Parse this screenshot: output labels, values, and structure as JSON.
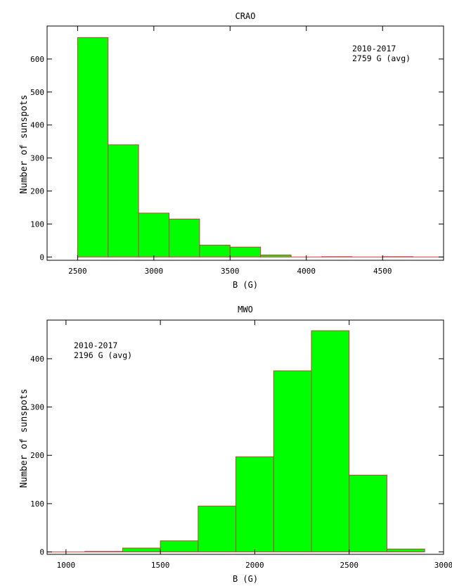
{
  "chart_data": [
    {
      "type": "bar",
      "title": "CRAO",
      "xlabel": "B (G)",
      "ylabel": "Number of sunspots",
      "annotation": [
        "2010-2017",
        "2759 G (avg)"
      ],
      "xlim": [
        2300,
        4900
      ],
      "ylim": [
        -10,
        700
      ],
      "xticks": [
        2500,
        3000,
        3500,
        4000,
        4500
      ],
      "yticks": [
        0,
        100,
        200,
        300,
        400,
        500,
        600
      ],
      "bin_width": 200,
      "bins": [
        {
          "start": 2500,
          "value": 665
        },
        {
          "start": 2700,
          "value": 340
        },
        {
          "start": 2900,
          "value": 133
        },
        {
          "start": 3100,
          "value": 115
        },
        {
          "start": 3300,
          "value": 36
        },
        {
          "start": 3500,
          "value": 30
        },
        {
          "start": 3700,
          "value": 6
        },
        {
          "start": 3900,
          "value": 0
        },
        {
          "start": 4100,
          "value": 1
        },
        {
          "start": 4300,
          "value": 0
        },
        {
          "start": 4500,
          "value": 1
        },
        {
          "start": 4700,
          "value": 0
        }
      ],
      "bar_color": "#00ff00",
      "edge_color": "#c04040"
    },
    {
      "type": "bar",
      "title": "MWO",
      "xlabel": "B (G)",
      "ylabel": "Number of sunspots",
      "annotation": [
        "2010-2017",
        "2196 G (avg)"
      ],
      "xlim": [
        900,
        3000
      ],
      "ylim": [
        -5,
        480
      ],
      "xticks": [
        1000,
        1500,
        2000,
        2500,
        3000
      ],
      "yticks": [
        0,
        100,
        200,
        300,
        400
      ],
      "bin_width": 200,
      "bins": [
        {
          "start": 900,
          "value": 0
        },
        {
          "start": 1100,
          "value": 1
        },
        {
          "start": 1300,
          "value": 8
        },
        {
          "start": 1500,
          "value": 23
        },
        {
          "start": 1700,
          "value": 95
        },
        {
          "start": 1900,
          "value": 197
        },
        {
          "start": 2100,
          "value": 375
        },
        {
          "start": 2300,
          "value": 458
        },
        {
          "start": 2500,
          "value": 159
        },
        {
          "start": 2700,
          "value": 6
        }
      ],
      "bar_color": "#00ff00",
      "edge_color": "#c04040"
    }
  ]
}
